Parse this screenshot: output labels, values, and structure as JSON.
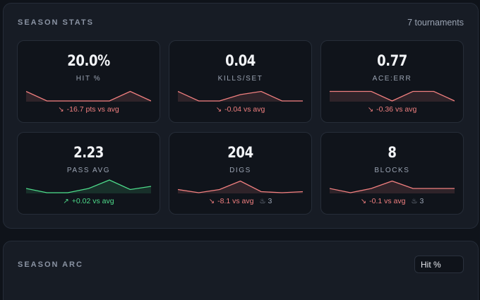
{
  "season_stats": {
    "title": "SEASON STATS",
    "tournaments": "7 tournaments",
    "cards": [
      {
        "value": "20.0%",
        "label": "HIT %",
        "delta": "-16.7 pts vs avg",
        "extra": "",
        "trend": "down",
        "spark": [
          0.45,
          0.0,
          0.0,
          0.0,
          0.0,
          0.45,
          0.0
        ]
      },
      {
        "value": "0.04",
        "label": "KILLS/SET",
        "delta": "-0.04 vs avg",
        "extra": "",
        "trend": "down",
        "spark": [
          0.45,
          0.0,
          0.0,
          0.3,
          0.45,
          0.0,
          0.0
        ]
      },
      {
        "value": "0.77",
        "label": "ACE:ERR",
        "delta": "-0.36 vs avg",
        "extra": "",
        "trend": "down",
        "spark": [
          0.45,
          0.45,
          0.45,
          0.0,
          0.45,
          0.45,
          0.0
        ]
      },
      {
        "value": "2.23",
        "label": "PASS AVG",
        "delta": "+0.02 vs avg",
        "extra": "",
        "trend": "up",
        "spark": [
          0.2,
          0.0,
          0.0,
          0.2,
          0.6,
          0.15,
          0.3
        ]
      },
      {
        "value": "204",
        "label": "DIGS",
        "delta": "-8.1 vs avg",
        "extra": "3",
        "trend": "down",
        "spark": [
          0.15,
          0.0,
          0.15,
          0.55,
          0.05,
          0.0,
          0.05
        ]
      },
      {
        "value": "8",
        "label": "BLOCKS",
        "delta": "-0.1 vs avg",
        "extra": "3",
        "trend": "down",
        "spark": [
          0.2,
          0.0,
          0.2,
          0.55,
          0.2,
          0.2,
          0.2
        ]
      }
    ]
  },
  "season_arc": {
    "title": "SEASON ARC",
    "metric_select": "Hit %"
  },
  "colors": {
    "negative": "#f07f7f",
    "positive": "#4ddb8a"
  },
  "icons": {
    "trend_down": "trend-down-icon",
    "trend_up": "trend-up-icon",
    "extra": "flame-icon"
  }
}
